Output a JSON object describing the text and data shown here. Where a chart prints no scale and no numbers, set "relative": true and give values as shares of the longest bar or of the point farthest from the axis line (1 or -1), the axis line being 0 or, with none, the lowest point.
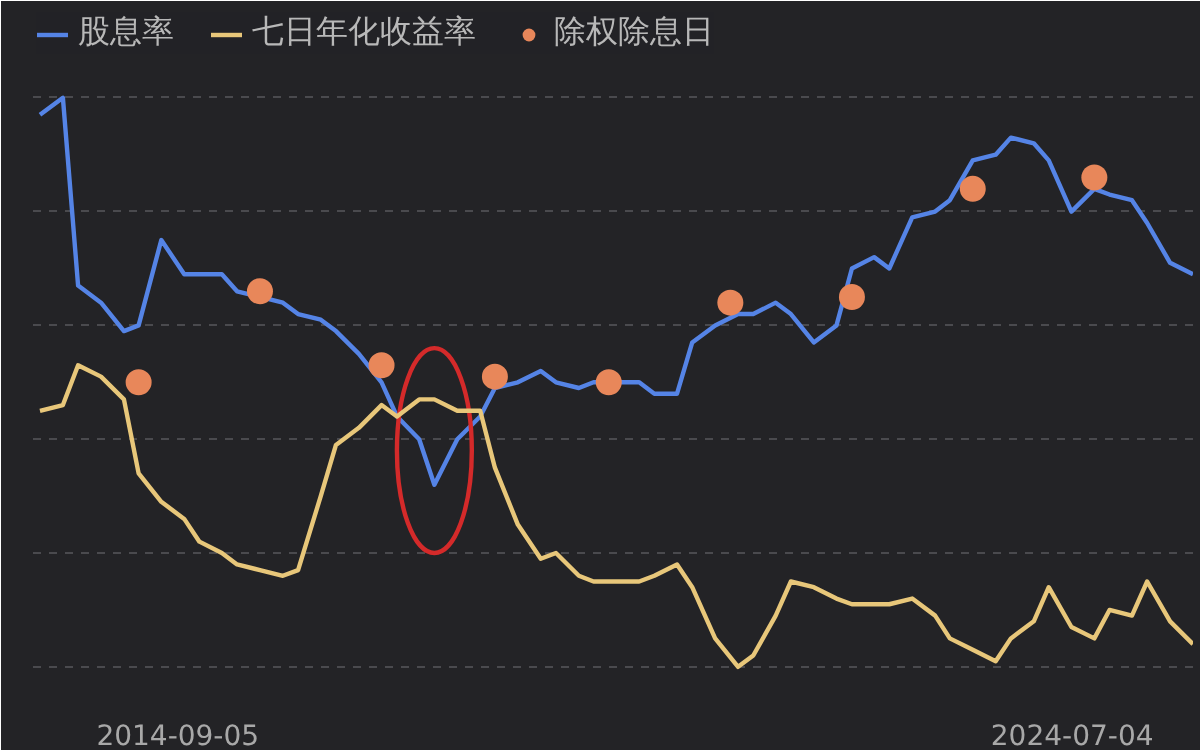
{
  "chart_data": {
    "type": "line",
    "relative": true,
    "legend": "top",
    "grid": "y",
    "line_style": "solid",
    "marker": "none",
    "xlim": [
      "2013-02",
      "2025-11"
    ],
    "xticks": [
      "2014-09-05",
      "2024-07-04"
    ],
    "x": [
      "2013-03",
      "2013-06",
      "2013-08",
      "2013-11",
      "2014-02",
      "2014-04",
      "2014-07",
      "2014-10",
      "2014-12",
      "2015-03",
      "2015-05",
      "2015-08",
      "2015-11",
      "2016-01",
      "2016-04",
      "2016-06",
      "2016-09",
      "2016-12",
      "2017-02",
      "2017-05",
      "2017-07",
      "2017-10",
      "2018-01",
      "2018-03",
      "2018-06",
      "2018-09",
      "2018-11",
      "2019-02",
      "2019-04",
      "2019-07",
      "2019-10",
      "2019-12",
      "2020-03",
      "2020-05",
      "2020-08",
      "2020-11",
      "2021-01",
      "2021-04",
      "2021-06",
      "2021-09",
      "2021-12",
      "2022-02",
      "2022-05",
      "2022-07",
      "2022-10",
      "2023-01",
      "2023-03",
      "2023-06",
      "2023-09",
      "2023-11",
      "2024-02",
      "2024-04",
      "2024-07",
      "2024-10",
      "2024-12",
      "2025-03",
      "2025-05",
      "2025-08",
      "2025-11"
    ],
    "series": [
      {
        "name": "股息率",
        "color": "#5584e6",
        "values": [
          0.97,
          1.0,
          0.67,
          0.64,
          0.59,
          0.6,
          0.75,
          0.69,
          0.69,
          0.69,
          0.66,
          0.65,
          0.64,
          0.62,
          0.61,
          0.59,
          0.55,
          0.5,
          0.44,
          0.4,
          0.32,
          0.4,
          0.44,
          0.49,
          0.5,
          0.52,
          0.5,
          0.49,
          0.5,
          0.5,
          0.5,
          0.48,
          0.48,
          0.57,
          0.6,
          0.62,
          0.62,
          0.64,
          0.62,
          0.57,
          0.6,
          0.7,
          0.72,
          0.7,
          0.79,
          0.8,
          0.82,
          0.89,
          0.9,
          0.93,
          0.92,
          0.89,
          0.8,
          0.84,
          0.83,
          0.82,
          0.78,
          0.71,
          0.69
        ]
      },
      {
        "name": "七日年化收益率",
        "color": "#e8c77a",
        "values": [
          0.45,
          0.46,
          0.53,
          0.51,
          0.47,
          0.34,
          0.29,
          0.26,
          0.22,
          0.2,
          0.18,
          0.17,
          0.16,
          0.17,
          0.3,
          0.39,
          0.42,
          0.46,
          0.44,
          0.47,
          0.47,
          0.45,
          0.45,
          0.35,
          0.25,
          0.19,
          0.2,
          0.16,
          0.15,
          0.15,
          0.15,
          0.16,
          0.18,
          0.14,
          0.05,
          0.0,
          0.02,
          0.09,
          0.15,
          0.14,
          0.12,
          0.11,
          0.11,
          0.11,
          0.12,
          0.09,
          0.05,
          0.03,
          0.01,
          0.05,
          0.08,
          0.14,
          0.07,
          0.05,
          0.1,
          0.09,
          0.15,
          0.08,
          0.04
        ]
      },
      {
        "name": "除权除息日",
        "type": "scatter",
        "marker": "circle",
        "color": "#e8875a",
        "x": [
          "2014-04",
          "2015-08",
          "2016-12",
          "2018-03",
          "2019-06",
          "2020-10",
          "2022-02",
          "2023-06",
          "2024-10"
        ],
        "values": [
          0.5,
          0.66,
          0.53,
          0.51,
          0.5,
          0.64,
          0.65,
          0.84,
          0.86
        ]
      }
    ]
  }
}
